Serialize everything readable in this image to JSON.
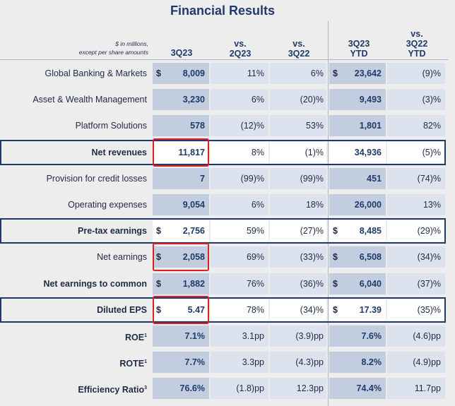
{
  "title": "Financial Results",
  "units": {
    "line1": "$ in millions,",
    "line2": "except per share amounts"
  },
  "headers": {
    "c3q23": "3Q23",
    "vs2q23_a": "vs.",
    "vs2q23_b": "2Q23",
    "vs3q22_a": "vs.",
    "vs3q22_b": "3Q22",
    "ytd_a": "3Q23",
    "ytd_b": "YTD",
    "vsytd_a": "vs.",
    "vsytd_b": "3Q22",
    "vsytd_c": "YTD"
  },
  "rows": [
    {
      "label": "Global Banking & Markets",
      "dollar1": "$",
      "q": "8,009",
      "vs2": "11%",
      "vs3": "6%",
      "dollar2": "$",
      "ytd": "23,642",
      "vsytd": "(9)%"
    },
    {
      "label": "Asset & Wealth Management",
      "dollar1": "",
      "q": "3,230",
      "vs2": "6%",
      "vs3": "(20)%",
      "dollar2": "",
      "ytd": "9,493",
      "vsytd": "(3)%"
    },
    {
      "label": "Platform Solutions",
      "dollar1": "",
      "q": "578",
      "vs2": "(12)%",
      "vs3": "53%",
      "dollar2": "",
      "ytd": "1,801",
      "vsytd": "82%"
    },
    {
      "label": "Net revenues",
      "dollar1": "",
      "q": "11,817",
      "vs2": "8%",
      "vs3": "(1)%",
      "dollar2": "",
      "ytd": "34,936",
      "vsytd": "(5)%"
    },
    {
      "label": "Provision for credit losses",
      "dollar1": "",
      "q": "7",
      "vs2": "(99)%",
      "vs3": "(99)%",
      "dollar2": "",
      "ytd": "451",
      "vsytd": "(74)%"
    },
    {
      "label": "Operating expenses",
      "dollar1": "",
      "q": "9,054",
      "vs2": "6%",
      "vs3": "18%",
      "dollar2": "",
      "ytd": "26,000",
      "vsytd": "13%"
    },
    {
      "label": "Pre-tax earnings",
      "dollar1": "$",
      "q": "2,756",
      "vs2": "59%",
      "vs3": "(27)%",
      "dollar2": "$",
      "ytd": "8,485",
      "vsytd": "(29)%"
    },
    {
      "label": "Net earnings",
      "dollar1": "$",
      "q": "2,058",
      "vs2": "69%",
      "vs3": "(33)%",
      "dollar2": "$",
      "ytd": "6,508",
      "vsytd": "(34)%"
    },
    {
      "label": "Net earnings to common",
      "dollar1": "$",
      "q": "1,882",
      "vs2": "76%",
      "vs3": "(36)%",
      "dollar2": "$",
      "ytd": "6,040",
      "vsytd": "(37)%"
    },
    {
      "label": "Diluted EPS",
      "dollar1": "$",
      "q": "5.47",
      "vs2": "78%",
      "vs3": "(34)%",
      "dollar2": "$",
      "ytd": "17.39",
      "vsytd": "(35)%"
    },
    {
      "label": "ROE",
      "sup": "1",
      "dollar1": "",
      "q": "7.1%",
      "vs2": "3.1pp",
      "vs3": "(3.9)pp",
      "dollar2": "",
      "ytd": "7.6%",
      "vsytd": "(4.6)pp"
    },
    {
      "label": "ROTE",
      "sup": "1",
      "dollar1": "",
      "q": "7.7%",
      "vs2": "3.3pp",
      "vs3": "(4.3)pp",
      "dollar2": "",
      "ytd": "8.2%",
      "vsytd": "(4.9)pp"
    },
    {
      "label": "Efficiency Ratio",
      "sup": "3",
      "dollar1": "",
      "q": "76.6%",
      "vs2": "(1.8)pp",
      "vs3": "12.3pp",
      "dollar2": "",
      "ytd": "74.4%",
      "vsytd": "11.7pp"
    }
  ]
}
